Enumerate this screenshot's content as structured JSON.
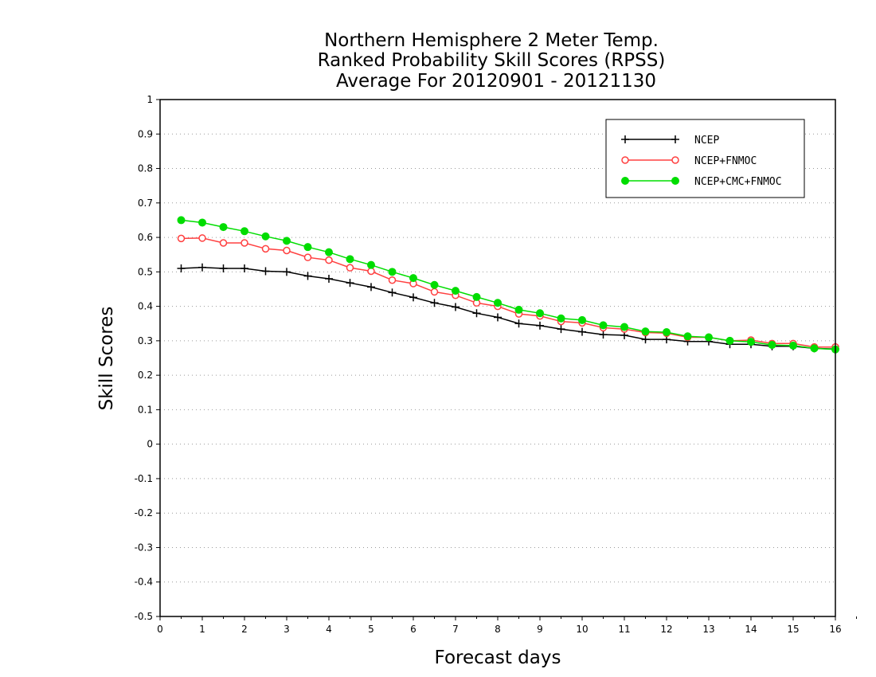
{
  "chart_data": {
    "type": "line",
    "title": [
      "Northern Hemisphere 2 Meter Temp.",
      "Ranked Probability Skill Scores (RPSS)",
      "Average For 20120901 - 20121130"
    ],
    "xlabel": "Forecast days",
    "ylabel": "Skill Scores",
    "xlim": [
      0,
      16
    ],
    "ylim": [
      -0.5,
      1
    ],
    "xticks": [
      "0",
      "1",
      "2",
      "3",
      "4",
      "5",
      "6",
      "7",
      "8",
      "9",
      "10",
      "11",
      "12",
      "13",
      "14",
      "15",
      "16"
    ],
    "yticks": [
      "-0.5",
      "-0.4",
      "-0.3",
      "-0.2",
      "-0.1",
      "0",
      "0.1",
      "0.2",
      "0.3",
      "0.4",
      "0.5",
      "0.6",
      "0.7",
      "0.8",
      "0.9",
      "1"
    ],
    "grid": "horizontal dotted",
    "legend_position": "top-right",
    "x": [
      0.5,
      1,
      1.5,
      2,
      2.5,
      3,
      3.5,
      4,
      4.5,
      5,
      5.5,
      6,
      6.5,
      7,
      7.5,
      8,
      8.5,
      9,
      9.5,
      10,
      10.5,
      11,
      11.5,
      12,
      12.5,
      13,
      13.5,
      14,
      14.5,
      15,
      15.5,
      16
    ],
    "series": [
      {
        "name": "NCEP",
        "color": "#000000",
        "marker": "plus",
        "values": [
          0.51,
          0.513,
          0.51,
          0.51,
          0.502,
          0.5,
          0.488,
          0.48,
          0.468,
          0.456,
          0.44,
          0.426,
          0.41,
          0.398,
          0.38,
          0.368,
          0.35,
          0.344,
          0.334,
          0.326,
          0.318,
          0.316,
          0.304,
          0.304,
          0.298,
          0.298,
          0.29,
          0.29,
          0.284,
          0.284,
          0.278,
          0.276
        ]
      },
      {
        "name": "NCEP+FNMOC",
        "color": "#ff4040",
        "marker": "open-circle",
        "values": [
          0.597,
          0.598,
          0.584,
          0.584,
          0.567,
          0.562,
          0.542,
          0.534,
          0.512,
          0.502,
          0.476,
          0.466,
          0.442,
          0.432,
          0.41,
          0.4,
          0.378,
          0.372,
          0.356,
          0.352,
          0.338,
          0.334,
          0.324,
          0.322,
          0.31,
          0.31,
          0.3,
          0.302,
          0.292,
          0.292,
          0.282,
          0.282
        ]
      },
      {
        "name": "NCEP+CMC+FNMOC",
        "color": "#00dd00",
        "marker": "filled-circle",
        "values": [
          0.65,
          0.643,
          0.63,
          0.618,
          0.603,
          0.59,
          0.572,
          0.557,
          0.537,
          0.52,
          0.5,
          0.482,
          0.462,
          0.445,
          0.427,
          0.41,
          0.39,
          0.38,
          0.365,
          0.36,
          0.345,
          0.34,
          0.327,
          0.325,
          0.313,
          0.31,
          0.3,
          0.297,
          0.288,
          0.286,
          0.278,
          0.275
        ]
      }
    ]
  }
}
